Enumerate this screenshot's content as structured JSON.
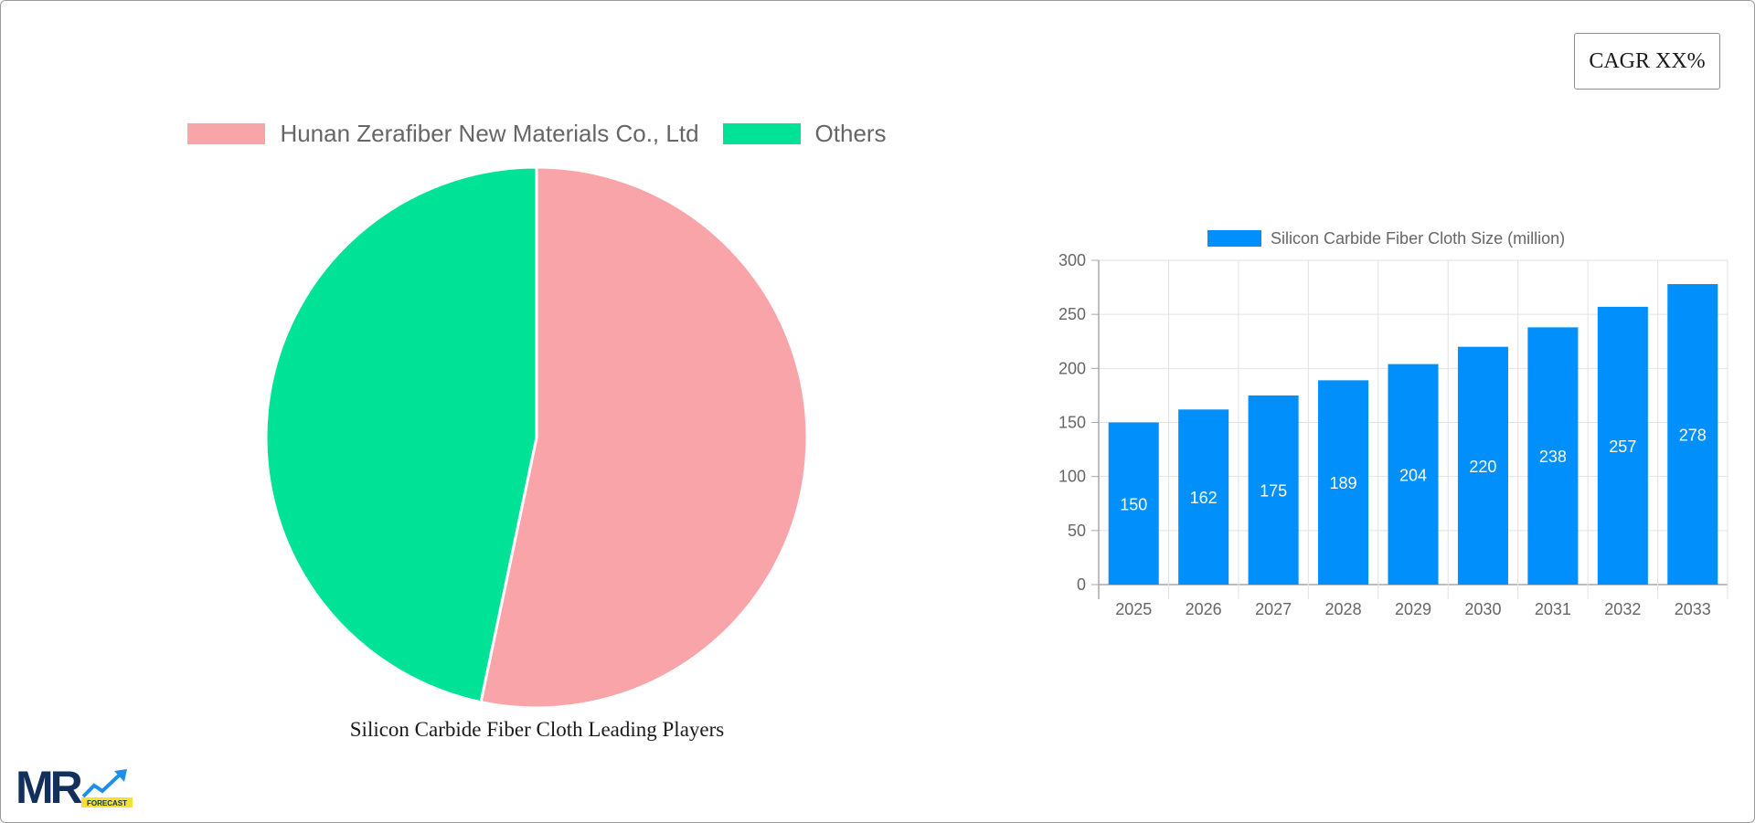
{
  "cagr_badge": {
    "label": "CAGR XX%"
  },
  "pie_chart": {
    "caption": "Silicon Carbide Fiber Cloth Leading Players",
    "legend": [
      {
        "label": "Hunan Zerafiber New Materials Co., Ltd",
        "color": "#f9a4a8"
      },
      {
        "label": "Others",
        "color": "#00e396"
      }
    ]
  },
  "bar_chart": {
    "legend_label": "Silicon Carbide Fiber Cloth Size (million)",
    "bar_color": "#008ffb",
    "y_ticks": [
      "0",
      "50",
      "100",
      "150",
      "200",
      "250",
      "300"
    ],
    "x_labels": [
      "2025",
      "2026",
      "2027",
      "2028",
      "2029",
      "2030",
      "2031",
      "2032",
      "2033"
    ],
    "values": [
      150,
      162,
      175,
      189,
      204,
      220,
      238,
      257,
      278
    ]
  },
  "logo": {
    "text": "MR",
    "badge": "FORECAST"
  },
  "chart_data": [
    {
      "type": "pie",
      "title": "Silicon Carbide Fiber Cloth Leading Players",
      "categories": [
        "Hunan Zerafiber New Materials Co., Ltd",
        "Others"
      ],
      "values": [
        53.3,
        46.7
      ],
      "colors": [
        "#f9a4a8",
        "#00e396"
      ],
      "legend_position": "top"
    },
    {
      "type": "bar",
      "title": "",
      "categories": [
        "2025",
        "2026",
        "2027",
        "2028",
        "2029",
        "2030",
        "2031",
        "2032",
        "2033"
      ],
      "series": [
        {
          "name": "Silicon Carbide Fiber Cloth Size (million)",
          "values": [
            150,
            162,
            175,
            189,
            204,
            220,
            238,
            257,
            278
          ]
        }
      ],
      "xlabel": "",
      "ylabel": "",
      "ylim": [
        0,
        300
      ],
      "y_ticks": [
        0,
        50,
        100,
        150,
        200,
        250,
        300
      ],
      "grid": true,
      "legend_position": "top",
      "data_labels": true
    }
  ]
}
